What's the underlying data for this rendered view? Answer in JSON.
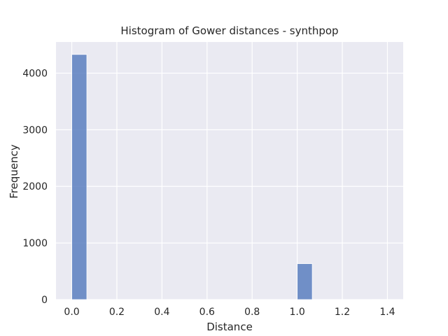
{
  "chart_data": {
    "type": "bar",
    "title": "Histogram of Gower distances - synthpop",
    "xlabel": "Distance",
    "ylabel": "Frequency",
    "xlim": [
      -0.07,
      1.47
    ],
    "ylim": [
      0,
      4550
    ],
    "xticks": [
      "0.0",
      "0.2",
      "0.4",
      "0.6",
      "0.8",
      "1.0",
      "1.2",
      "1.4"
    ],
    "xtick_values": [
      0.0,
      0.2,
      0.4,
      0.6,
      0.8,
      1.0,
      1.2,
      1.4
    ],
    "yticks": [
      "0",
      "1000",
      "2000",
      "3000",
      "4000"
    ],
    "ytick_values": [
      0,
      1000,
      2000,
      3000,
      4000
    ],
    "bin_width": 0.0667,
    "bins": [
      {
        "x0": 0.0,
        "count": 4330
      },
      {
        "x0": 0.0667,
        "count": 0
      },
      {
        "x0": 0.1333,
        "count": 0
      },
      {
        "x0": 0.2,
        "count": 0
      },
      {
        "x0": 0.2667,
        "count": 0
      },
      {
        "x0": 0.3333,
        "count": 0
      },
      {
        "x0": 0.4,
        "count": 0
      },
      {
        "x0": 0.4667,
        "count": 0
      },
      {
        "x0": 0.5333,
        "count": 0
      },
      {
        "x0": 0.6,
        "count": 0
      },
      {
        "x0": 0.6667,
        "count": 0
      },
      {
        "x0": 0.7333,
        "count": 0
      },
      {
        "x0": 0.8,
        "count": 0
      },
      {
        "x0": 0.8667,
        "count": 0
      },
      {
        "x0": 0.9333,
        "count": 0
      },
      {
        "x0": 1.0,
        "count": 635
      },
      {
        "x0": 1.0667,
        "count": 0
      },
      {
        "x0": 1.1333,
        "count": 0
      },
      {
        "x0": 1.2,
        "count": 0
      },
      {
        "x0": 1.2667,
        "count": 0
      },
      {
        "x0": 1.3333,
        "count": 2
      }
    ],
    "grid": true
  },
  "colors": {
    "plot_background": "#eaeaf2",
    "grid": "#ffffff",
    "bar_fill": "#5b7fbf",
    "bar_edge": "#ffffff",
    "text": "#262626"
  }
}
